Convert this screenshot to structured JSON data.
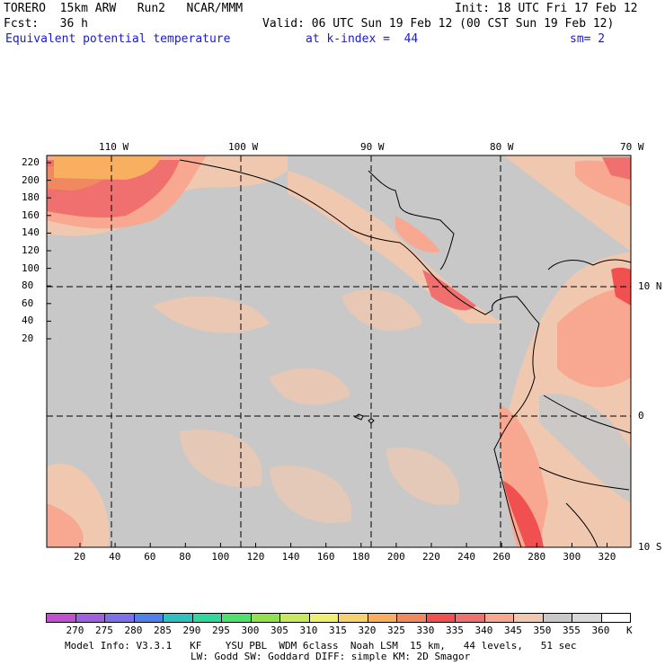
{
  "header": {
    "model": "TORERO  15km ARW   Run2   NCAR/MMM",
    "init": "Init: 18 UTC Fri 17 Feb 12",
    "fcst": "Fcst:   36 h",
    "valid": "Valid: 06 UTC Sun 19 Feb 12 (00 CST Sun 19 Feb 12)",
    "field": "Equivalent potential temperature",
    "kindex": "at k-index =  44",
    "smooth": "sm= 2"
  },
  "map": {
    "top_lon_labels": [
      "110 W",
      "100 W",
      "90 W",
      "80 W",
      "70 W"
    ],
    "right_lat_labels": [
      "10 N",
      "0",
      "10 S"
    ],
    "left_y_ticks": [
      "220",
      "200",
      "180",
      "160",
      "140",
      "120",
      "100",
      "80",
      "60",
      "40",
      "20"
    ],
    "bottom_x_ticks": [
      "20",
      "40",
      "60",
      "80",
      "100",
      "120",
      "140",
      "160",
      "180",
      "200",
      "220",
      "240",
      "260",
      "280",
      "300",
      "320"
    ]
  },
  "colorbar": {
    "labels": [
      "270",
      "275",
      "280",
      "285",
      "290",
      "295",
      "300",
      "305",
      "310",
      "315",
      "320",
      "325",
      "330",
      "335",
      "340",
      "345",
      "350",
      "355",
      "360"
    ],
    "unit": "K",
    "colors": [
      "#c050d0",
      "#a060e0",
      "#8070e8",
      "#5080e8",
      "#30c0c0",
      "#30d8a0",
      "#50e070",
      "#90e050",
      "#c8e860",
      "#f0f070",
      "#f8d070",
      "#f8b060",
      "#f08860",
      "#f05050",
      "#f07070",
      "#f8a890",
      "#f0c8b0",
      "#c8c8c8",
      "#d8d8d8",
      "#ffffff"
    ]
  },
  "footer": {
    "line1": "Model Info: V3.3.1   KF    YSU PBL  WDM 6class  Noah LSM  15 km,   44 levels,   51 sec",
    "line2": "LW: Godd SW: Goddard DIFF: simple KM: 2D Smagor"
  }
}
